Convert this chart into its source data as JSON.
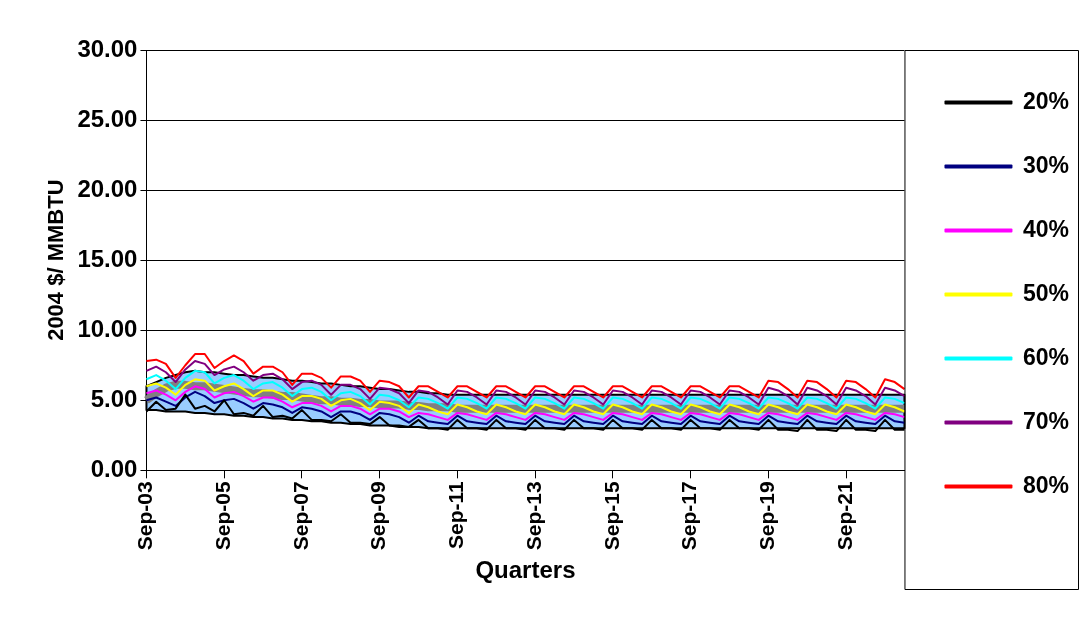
{
  "chart_data": {
    "type": "line",
    "xlabel": "Quarters",
    "ylabel": "2004 $/ MMBTU",
    "categories": [
      "Sep-03",
      null,
      null,
      null,
      null,
      null,
      null,
      null,
      "Sep-05",
      null,
      null,
      null,
      null,
      null,
      null,
      null,
      "Sep-07",
      null,
      null,
      null,
      null,
      null,
      null,
      null,
      "Sep-09",
      null,
      null,
      null,
      null,
      null,
      null,
      null,
      "Sep-11",
      null,
      null,
      null,
      null,
      null,
      null,
      null,
      "Sep-13",
      null,
      null,
      null,
      null,
      null,
      null,
      null,
      "Sep-15",
      null,
      null,
      null,
      null,
      null,
      null,
      null,
      "Sep-17",
      null,
      null,
      null,
      null,
      null,
      null,
      null,
      "Sep-19",
      null,
      null,
      null,
      null,
      null,
      null,
      null,
      "Sep-21",
      null,
      null,
      null,
      null,
      null,
      null
    ],
    "ylim": [
      0,
      30
    ],
    "yticks": [
      {
        "value": 0,
        "label": "0.00"
      },
      {
        "value": 5,
        "label": "5.00"
      },
      {
        "value": 10,
        "label": "10.00"
      },
      {
        "value": 15,
        "label": "15.00"
      },
      {
        "value": 20,
        "label": "20.00"
      },
      {
        "value": 25,
        "label": "25.00"
      },
      {
        "value": 30,
        "label": "30.00"
      }
    ],
    "grid": "y",
    "legend": "right",
    "marker": "none",
    "line_style": "solid",
    "series": [
      {
        "name": "20%",
        "color": "#000000",
        "values": [
          4.2,
          4.9,
          4.3,
          4.4,
          5.4,
          4.4,
          4.6,
          4.2,
          5.0,
          4.0,
          4.1,
          3.9,
          4.6,
          3.8,
          3.9,
          3.7,
          4.3,
          3.6,
          3.6,
          3.5,
          4.0,
          3.4,
          3.4,
          3.3,
          3.8,
          3.2,
          3.2,
          3.1,
          3.6,
          3.0,
          3.0,
          2.9,
          3.6,
          3.0,
          3.0,
          2.9,
          3.6,
          3.0,
          3.0,
          2.9,
          3.6,
          3.0,
          3.0,
          2.9,
          3.6,
          3.0,
          3.0,
          2.9,
          3.6,
          3.0,
          3.0,
          2.9,
          3.6,
          3.0,
          3.0,
          2.9,
          3.6,
          3.0,
          3.0,
          2.9,
          3.6,
          3.0,
          3.0,
          2.9,
          3.6,
          2.9,
          2.9,
          2.8,
          3.6,
          2.9,
          2.9,
          2.8,
          3.6,
          2.9,
          2.9,
          2.8,
          3.6,
          2.9,
          2.9
        ]
      },
      {
        "name": "30%",
        "color": "#000080",
        "values": [
          5.0,
          5.2,
          4.9,
          4.6,
          5.2,
          5.6,
          5.3,
          4.8,
          5.0,
          5.1,
          4.8,
          4.4,
          4.8,
          4.7,
          4.5,
          4.1,
          4.5,
          4.4,
          4.2,
          3.8,
          4.2,
          4.2,
          4.0,
          3.6,
          4.1,
          4.0,
          3.8,
          3.4,
          3.9,
          3.5,
          3.4,
          3.3,
          3.9,
          3.5,
          3.4,
          3.3,
          3.9,
          3.5,
          3.4,
          3.3,
          3.9,
          3.5,
          3.4,
          3.3,
          3.9,
          3.5,
          3.4,
          3.3,
          3.9,
          3.5,
          3.4,
          3.3,
          3.9,
          3.5,
          3.4,
          3.3,
          3.9,
          3.5,
          3.4,
          3.3,
          3.9,
          3.5,
          3.4,
          3.3,
          3.9,
          3.5,
          3.4,
          3.3,
          3.9,
          3.5,
          3.4,
          3.3,
          3.9,
          3.5,
          3.4,
          3.3,
          3.9,
          3.5,
          3.4
        ]
      },
      {
        "name": "40%",
        "color": "#ff00ff",
        "values": [
          5.5,
          5.7,
          5.4,
          5.0,
          5.6,
          6.0,
          5.8,
          5.2,
          5.5,
          5.6,
          5.3,
          4.9,
          5.2,
          5.2,
          4.9,
          4.5,
          4.8,
          4.8,
          4.6,
          4.2,
          4.6,
          4.6,
          4.4,
          4.0,
          4.4,
          4.4,
          4.2,
          3.8,
          4.1,
          4.0,
          3.8,
          3.6,
          4.1,
          4.0,
          3.8,
          3.6,
          4.1,
          4.0,
          3.8,
          3.6,
          4.1,
          4.0,
          3.8,
          3.6,
          4.1,
          4.0,
          3.8,
          3.6,
          4.1,
          4.0,
          3.8,
          3.6,
          4.1,
          4.0,
          3.8,
          3.6,
          4.1,
          4.0,
          3.8,
          3.6,
          4.1,
          4.0,
          3.8,
          3.6,
          4.1,
          4.0,
          3.8,
          3.6,
          4.1,
          4.0,
          3.8,
          3.6,
          4.1,
          4.0,
          3.8,
          3.6,
          4.1,
          4.0,
          3.8
        ]
      },
      {
        "name": "50%",
        "color": "#ffff00",
        "values": [
          6.0,
          6.2,
          5.9,
          5.4,
          6.1,
          6.5,
          6.4,
          5.7,
          6.0,
          6.2,
          5.8,
          5.3,
          5.7,
          5.7,
          5.4,
          4.9,
          5.3,
          5.3,
          5.1,
          4.6,
          5.0,
          5.1,
          4.8,
          4.3,
          4.9,
          4.8,
          4.6,
          4.1,
          4.7,
          4.5,
          4.2,
          4.0,
          4.7,
          4.5,
          4.2,
          4.0,
          4.7,
          4.5,
          4.2,
          4.0,
          4.7,
          4.5,
          4.2,
          4.0,
          4.7,
          4.5,
          4.2,
          4.0,
          4.7,
          4.5,
          4.2,
          4.0,
          4.7,
          4.5,
          4.2,
          4.0,
          4.7,
          4.5,
          4.2,
          4.0,
          4.7,
          4.5,
          4.2,
          4.0,
          4.7,
          4.5,
          4.2,
          4.0,
          4.7,
          4.5,
          4.2,
          4.0,
          4.7,
          4.5,
          4.2,
          4.0,
          4.7,
          4.5,
          4.2
        ]
      },
      {
        "name": "60%",
        "color": "#00ffff",
        "values": [
          6.5,
          6.8,
          6.4,
          5.8,
          6.6,
          7.1,
          7.0,
          6.2,
          6.6,
          6.8,
          6.4,
          5.8,
          6.2,
          6.3,
          5.9,
          5.3,
          5.8,
          5.9,
          5.6,
          5.0,
          5.5,
          5.6,
          5.3,
          4.7,
          5.4,
          5.3,
          5.0,
          4.5,
          5.2,
          5.1,
          4.8,
          4.4,
          5.2,
          5.1,
          4.8,
          4.4,
          5.2,
          5.1,
          4.8,
          4.4,
          5.2,
          5.1,
          4.8,
          4.4,
          5.2,
          5.1,
          4.8,
          4.4,
          5.2,
          5.1,
          4.8,
          4.4,
          5.2,
          5.1,
          4.8,
          4.4,
          5.2,
          5.1,
          4.8,
          4.4,
          5.2,
          5.1,
          4.8,
          4.4,
          5.2,
          5.1,
          4.8,
          4.4,
          5.2,
          5.1,
          4.8,
          4.4,
          5.2,
          5.1,
          4.8,
          4.4,
          5.2,
          5.1,
          4.8
        ]
      },
      {
        "name": "70%",
        "color": "#800080",
        "values": [
          7.1,
          7.4,
          7.0,
          6.3,
          7.2,
          7.8,
          7.6,
          6.8,
          7.2,
          7.4,
          7.0,
          6.4,
          6.8,
          6.9,
          6.5,
          5.8,
          6.3,
          6.4,
          6.1,
          5.4,
          6.1,
          6.1,
          5.8,
          5.1,
          5.9,
          5.8,
          5.5,
          4.8,
          5.7,
          5.6,
          5.2,
          4.7,
          5.7,
          5.6,
          5.2,
          4.7,
          5.7,
          5.6,
          5.2,
          4.7,
          5.7,
          5.6,
          5.2,
          4.7,
          5.7,
          5.6,
          5.2,
          4.7,
          5.7,
          5.6,
          5.2,
          4.7,
          5.7,
          5.6,
          5.2,
          4.7,
          5.7,
          5.6,
          5.2,
          4.7,
          5.7,
          5.6,
          5.2,
          4.7,
          5.9,
          5.7,
          5.3,
          4.7,
          5.9,
          5.7,
          5.3,
          4.7,
          5.9,
          5.7,
          5.3,
          4.7,
          5.9,
          5.7,
          5.3
        ]
      },
      {
        "name": "80%",
        "color": "#ff0000",
        "values": [
          7.8,
          7.9,
          7.6,
          6.6,
          7.5,
          8.3,
          8.3,
          7.3,
          7.8,
          8.2,
          7.8,
          6.9,
          7.4,
          7.4,
          7.0,
          6.1,
          6.9,
          6.9,
          6.6,
          5.9,
          6.7,
          6.7,
          6.4,
          5.6,
          6.4,
          6.3,
          6.0,
          5.2,
          6.0,
          6.0,
          5.6,
          5.2,
          6.0,
          6.0,
          5.6,
          5.2,
          6.0,
          6.0,
          5.6,
          5.2,
          6.0,
          6.0,
          5.6,
          5.2,
          6.0,
          6.0,
          5.6,
          5.2,
          6.0,
          6.0,
          5.6,
          5.2,
          6.0,
          6.0,
          5.6,
          5.2,
          6.0,
          6.0,
          5.6,
          5.2,
          6.0,
          6.0,
          5.6,
          5.2,
          6.4,
          6.3,
          5.8,
          5.2,
          6.4,
          6.3,
          5.8,
          5.2,
          6.4,
          6.3,
          5.8,
          5.2,
          6.5,
          6.3,
          5.8
        ]
      },
      {
        "color": "#808080",
        "values": [
          5.0,
          5.5,
          5.9,
          6.1,
          6.1,
          6.0,
          6.0,
          5.9,
          5.8,
          5.7,
          5.6,
          5.5,
          5.5,
          5.4,
          5.3,
          5.3,
          5.2,
          5.1,
          5.0,
          5.0,
          4.9,
          4.9,
          4.8,
          4.8,
          4.7,
          4.7,
          4.7,
          4.6,
          4.6,
          4.5,
          4.5,
          4.5,
          4.4,
          4.4,
          4.4,
          4.4,
          4.4,
          4.4,
          4.4,
          4.4,
          4.4,
          4.4,
          4.4,
          4.4,
          4.4,
          4.4,
          4.4,
          4.4,
          4.4,
          4.4,
          4.4,
          4.4,
          4.4,
          4.4,
          4.4,
          4.4,
          4.4,
          4.4,
          4.4,
          4.4,
          4.4,
          4.4,
          4.4,
          4.4,
          4.4,
          4.4,
          4.4,
          4.4,
          4.4,
          4.4,
          4.4,
          4.4,
          4.4,
          4.4,
          4.4,
          4.4,
          4.4,
          4.4,
          4.4
        ],
        "lower": [
          4.3,
          4.3,
          4.2,
          4.2,
          4.2,
          4.1,
          4.1,
          4.0,
          4.0,
          3.9,
          3.9,
          3.8,
          3.8,
          3.7,
          3.7,
          3.6,
          3.6,
          3.5,
          3.5,
          3.4,
          3.4,
          3.3,
          3.3,
          3.2,
          3.2,
          3.2,
          3.1,
          3.1,
          3.1,
          3.0,
          3.0,
          3.0,
          3.0,
          3.0,
          3.0,
          3.0,
          3.0,
          3.0,
          3.0,
          3.0,
          3.0,
          3.0,
          3.0,
          3.0,
          3.0,
          3.0,
          3.0,
          3.0,
          3.0,
          3.0,
          3.0,
          3.0,
          3.0,
          3.0,
          3.0,
          3.0,
          3.0,
          3.0,
          3.0,
          3.0,
          3.0,
          3.0,
          3.0,
          3.0,
          3.0,
          3.0,
          3.0,
          3.0,
          3.0,
          3.0,
          3.0,
          3.0,
          3.0,
          3.0,
          3.0,
          3.0,
          3.0,
          3.0,
          3.0
        ],
        "upper": [
          6.0,
          6.3,
          6.6,
          6.8,
          7.0,
          7.1,
          7.0,
          7.0,
          6.9,
          6.8,
          6.8,
          6.7,
          6.6,
          6.6,
          6.5,
          6.4,
          6.4,
          6.3,
          6.2,
          6.2,
          6.1,
          6.0,
          6.0,
          5.9,
          5.8,
          5.8,
          5.7,
          5.6,
          5.6,
          5.5,
          5.5,
          5.4,
          5.4,
          5.4,
          5.4,
          5.4,
          5.4,
          5.4,
          5.4,
          5.4,
          5.4,
          5.4,
          5.4,
          5.4,
          5.4,
          5.4,
          5.4,
          5.4,
          5.4,
          5.4,
          5.4,
          5.4,
          5.4,
          5.4,
          5.4,
          5.4,
          5.4,
          5.4,
          5.4,
          5.4,
          5.4,
          5.4,
          5.4,
          5.4,
          5.4,
          5.4,
          5.4,
          5.4,
          5.4,
          5.4,
          5.4,
          5.4,
          5.4,
          5.4,
          5.4,
          5.4,
          5.4,
          5.4,
          5.4
        ]
      }
    ]
  }
}
